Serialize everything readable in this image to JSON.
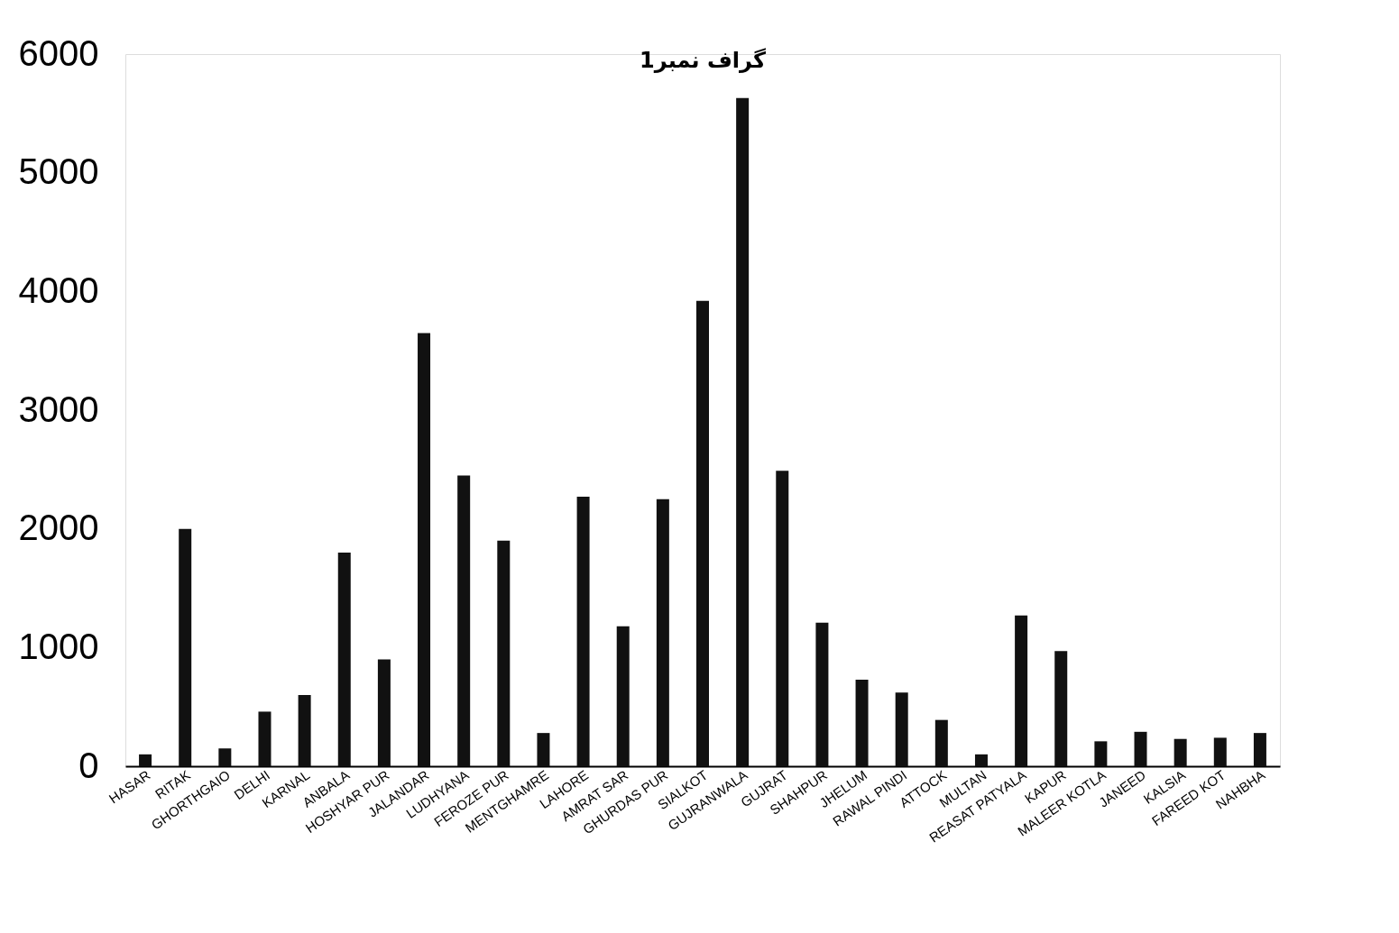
{
  "chart_data": {
    "type": "bar",
    "title": "گراف نمبر1",
    "categories": [
      "HASAR",
      "RITAK",
      "GHORTHGAIO",
      "DELHI",
      "KARNAL",
      "ANBALA",
      "HOSHYAR PUR",
      "JALANDAR",
      "LUDHYANA",
      "FEROZE PUR",
      "MENTGHAMRE",
      "LAHORE",
      "AMRAT SAR",
      "GHURDAS PUR",
      "SIALKOT",
      "GUJRANWALA",
      "GUJRAT",
      "SHAHPUR",
      "JHELUM",
      "RAWAL PINDI",
      "ATTOCK",
      "MULTAN",
      "REASAT PATYALA",
      "KAPUR",
      "MALEER KOTLA",
      "JANEED",
      "KALSIA",
      "FAREED KOT",
      "NAHBHA"
    ],
    "values": [
      100,
      2000,
      150,
      460,
      600,
      1800,
      900,
      3650,
      2450,
      1900,
      280,
      2270,
      1180,
      2250,
      3920,
      5630,
      2490,
      1210,
      730,
      620,
      390,
      100,
      1270,
      970,
      210,
      290,
      230,
      240,
      280
    ],
    "color": "#111111",
    "ylim": [
      0,
      6000
    ],
    "yticks": [
      0,
      1000,
      2000,
      3000,
      4000,
      5000,
      6000
    ],
    "grid": false
  }
}
